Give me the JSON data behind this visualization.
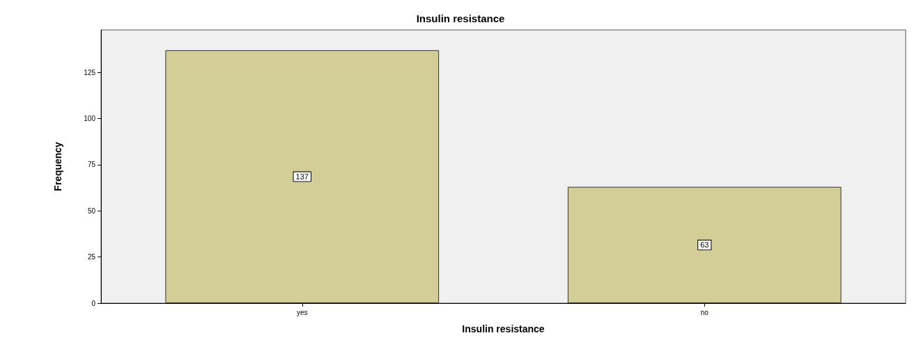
{
  "chart_data": {
    "type": "bar",
    "title": "Insulin resistance",
    "xlabel": "Insulin resistance",
    "ylabel": "Frequency",
    "categories": [
      "yes",
      "no"
    ],
    "values": [
      137,
      63
    ],
    "color": "#d3ce97",
    "ylim": [
      0,
      148
    ],
    "yticks": [
      0,
      25,
      50,
      75,
      100,
      125
    ],
    "grid": false,
    "data_labels": true
  }
}
